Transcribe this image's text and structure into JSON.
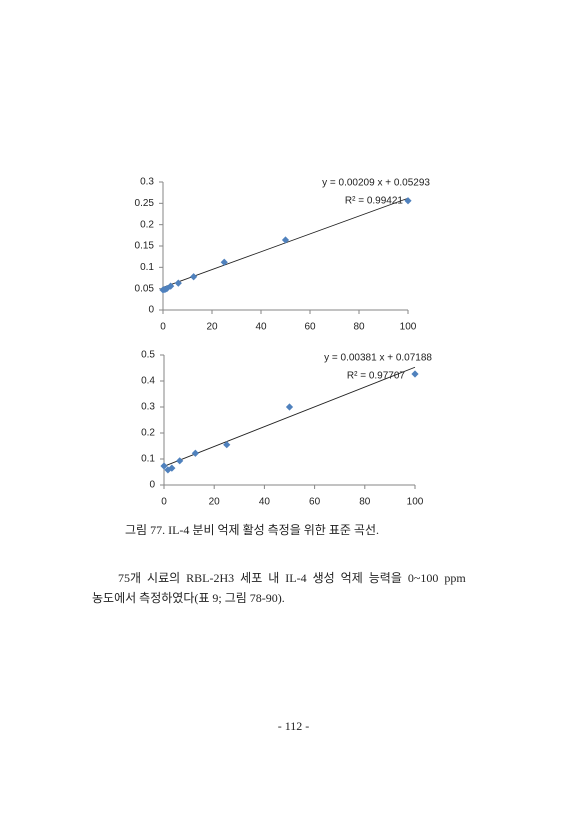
{
  "chart_data": [
    {
      "type": "scatter",
      "x": [
        0,
        0.78,
        1.56,
        3.125,
        6.25,
        12.5,
        25,
        50,
        100
      ],
      "values": [
        0.047,
        0.048,
        0.05,
        0.056,
        0.063,
        0.078,
        0.112,
        0.164,
        0.256
      ],
      "color": "#4f81bd",
      "trendline": {
        "slope": 0.00209,
        "intercept": 0.05293,
        "label": "y = 0.00209  x + 0.05293"
      },
      "r2_label": "R² = 0.99421",
      "xlim": [
        0,
        100
      ],
      "xticks": [
        0,
        20,
        40,
        60,
        80,
        100
      ],
      "ylim": [
        0,
        0.3
      ],
      "yticks": [
        0,
        0.05,
        0.1,
        0.15,
        0.2,
        0.25,
        0.3
      ]
    },
    {
      "type": "scatter",
      "x": [
        0,
        1.56,
        3.125,
        6.25,
        12.5,
        25,
        50,
        100
      ],
      "values": [
        0.073,
        0.058,
        0.065,
        0.093,
        0.122,
        0.155,
        0.3,
        0.427
      ],
      "color": "#4f81bd",
      "trendline": {
        "slope": 0.00381,
        "intercept": 0.07188,
        "label": "y = 0.00381  x + 0.07188"
      },
      "r2_label": "R² = 0.97707",
      "xlim": [
        0,
        100
      ],
      "xticks": [
        0,
        20,
        40,
        60,
        80,
        100
      ],
      "ylim": [
        0,
        0.5
      ],
      "yticks": [
        0,
        0.1,
        0.2,
        0.3,
        0.4,
        0.5
      ]
    }
  ],
  "document": {
    "caption": "그림 77. IL-4 분비 억제 활성 측정을 위한 표준 곡선.",
    "paragraph": [
      "75개 시료의 RBL-2H3 세포 내 IL-4 생성 억제 능력을 0~100 ppm",
      "농도에서 측정하였다(표 9; 그림 78-90)."
    ],
    "page_number": "- 112 -"
  }
}
